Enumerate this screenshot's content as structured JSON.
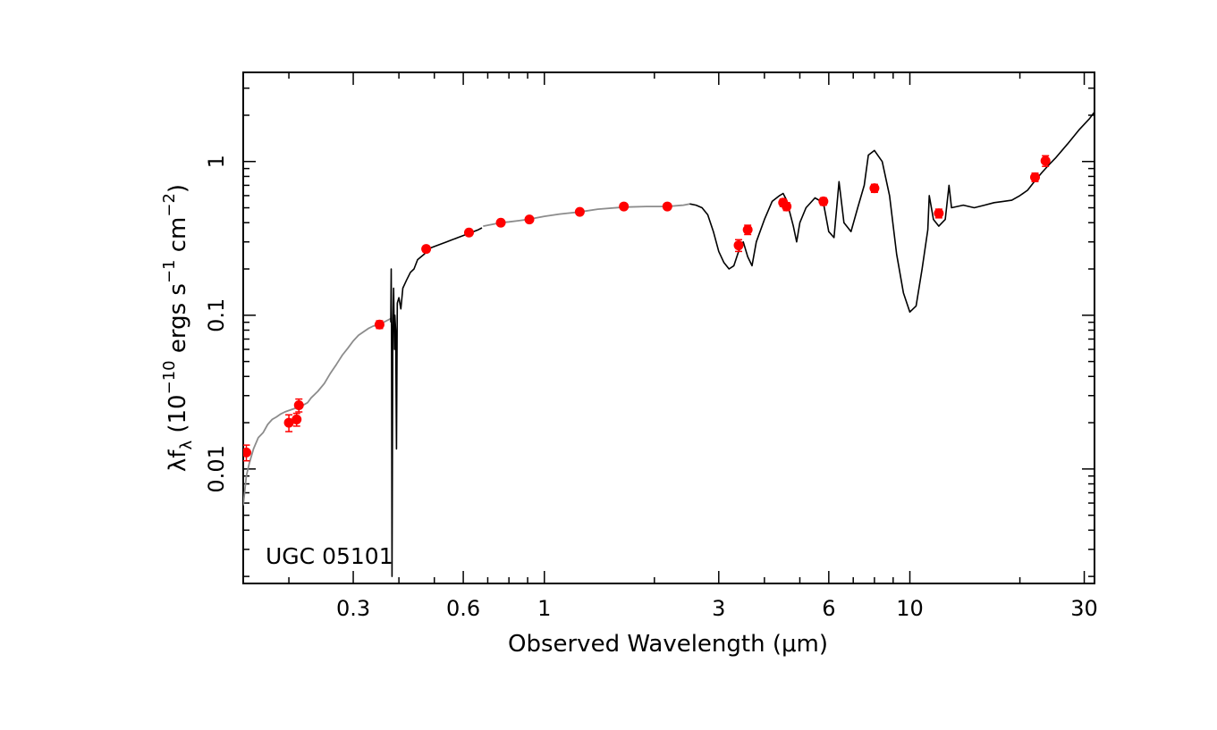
{
  "chart_data": {
    "type": "scatter",
    "title": "",
    "annotation": "UGC 05101",
    "xlabel": "Observed Wavelength (μm)",
    "ylabel_parts": {
      "base": "λf",
      "sub": "λ",
      "mid": " (10",
      "exp1": "−10",
      "mid2": " ergs s",
      "exp2": "−1",
      "mid3": " cm",
      "exp3": "−2",
      "end": ")"
    },
    "x_scale": "log",
    "y_scale": "log",
    "xlim": [
      0.15,
      32
    ],
    "ylim": [
      0.0018,
      3.8
    ],
    "x_ticks": [
      {
        "value": 0.3,
        "label": "0.3"
      },
      {
        "value": 0.6,
        "label": "0.6"
      },
      {
        "value": 1,
        "label": "1"
      },
      {
        "value": 3,
        "label": "3"
      },
      {
        "value": 6,
        "label": "6"
      },
      {
        "value": 10,
        "label": "10"
      },
      {
        "value": 30,
        "label": "30"
      }
    ],
    "y_ticks": [
      {
        "value": 0.01,
        "label": "0.01"
      },
      {
        "value": 0.1,
        "label": "0.1"
      },
      {
        "value": 1,
        "label": "1"
      }
    ],
    "grid": false,
    "legend": "none",
    "colors": {
      "photometry": "#ff0000",
      "model": "#8c8c8c",
      "spectrum": "#000000"
    },
    "series": [
      {
        "kind": "photometry",
        "points": [
          {
            "x": 0.153,
            "y": 0.0128,
            "err": 0.0015
          },
          {
            "x": 0.2,
            "y": 0.02,
            "err": 0.0025
          },
          {
            "x": 0.21,
            "y": 0.021,
            "err": 0.002
          },
          {
            "x": 0.213,
            "y": 0.026,
            "err": 0.0025
          },
          {
            "x": 0.354,
            "y": 0.087,
            "err": 0.005
          },
          {
            "x": 0.475,
            "y": 0.27,
            "err": 0.012
          },
          {
            "x": 0.622,
            "y": 0.345,
            "err": 0.015
          },
          {
            "x": 0.76,
            "y": 0.4,
            "err": 0.015
          },
          {
            "x": 0.91,
            "y": 0.42,
            "err": 0.015
          },
          {
            "x": 1.25,
            "y": 0.47,
            "err": 0.015
          },
          {
            "x": 1.65,
            "y": 0.51,
            "err": 0.015
          },
          {
            "x": 2.17,
            "y": 0.51,
            "err": 0.015
          },
          {
            "x": 3.4,
            "y": 0.285,
            "err": 0.025
          },
          {
            "x": 3.6,
            "y": 0.36,
            "err": 0.025
          },
          {
            "x": 4.5,
            "y": 0.54,
            "err": 0.03
          },
          {
            "x": 4.6,
            "y": 0.51,
            "err": 0.03
          },
          {
            "x": 5.8,
            "y": 0.55,
            "err": 0.03
          },
          {
            "x": 8.0,
            "y": 0.67,
            "err": 0.04
          },
          {
            "x": 12.0,
            "y": 0.46,
            "err": 0.03
          },
          {
            "x": 22.0,
            "y": 0.79,
            "err": 0.05
          },
          {
            "x": 23.5,
            "y": 1.01,
            "err": 0.08
          }
        ]
      },
      {
        "kind": "model",
        "points": [
          [
            0.15,
            0.0058
          ],
          [
            0.153,
            0.009
          ],
          [
            0.156,
            0.011
          ],
          [
            0.16,
            0.0135
          ],
          [
            0.165,
            0.016
          ],
          [
            0.17,
            0.0172
          ],
          [
            0.175,
            0.0195
          ],
          [
            0.18,
            0.021
          ],
          [
            0.185,
            0.0218
          ],
          [
            0.19,
            0.0228
          ],
          [
            0.195,
            0.0235
          ],
          [
            0.2,
            0.024
          ],
          [
            0.205,
            0.0245
          ],
          [
            0.21,
            0.025
          ],
          [
            0.215,
            0.0258
          ],
          [
            0.22,
            0.0262
          ],
          [
            0.225,
            0.027
          ],
          [
            0.23,
            0.029
          ],
          [
            0.24,
            0.032
          ],
          [
            0.25,
            0.036
          ],
          [
            0.26,
            0.042
          ],
          [
            0.27,
            0.048
          ],
          [
            0.28,
            0.055
          ],
          [
            0.29,
            0.061
          ],
          [
            0.3,
            0.068
          ],
          [
            0.31,
            0.074
          ],
          [
            0.32,
            0.078
          ],
          [
            0.33,
            0.082
          ],
          [
            0.34,
            0.085
          ],
          [
            0.35,
            0.087
          ],
          [
            0.36,
            0.089
          ],
          [
            0.37,
            0.092
          ],
          [
            0.38,
            0.095
          ]
        ]
      },
      {
        "kind": "model",
        "points": [
          [
            0.68,
            0.38
          ],
          [
            0.72,
            0.39
          ],
          [
            0.76,
            0.4
          ],
          [
            0.8,
            0.405
          ],
          [
            0.85,
            0.412
          ],
          [
            0.9,
            0.42
          ],
          [
            1.0,
            0.44
          ],
          [
            1.1,
            0.455
          ],
          [
            1.25,
            0.47
          ],
          [
            1.4,
            0.49
          ],
          [
            1.65,
            0.505
          ],
          [
            1.9,
            0.51
          ],
          [
            2.17,
            0.51
          ],
          [
            2.4,
            0.52
          ],
          [
            2.5,
            0.53
          ]
        ]
      },
      {
        "kind": "spectrum",
        "points": [
          [
            0.38,
            0.09
          ],
          [
            0.381,
            0.2
          ],
          [
            0.382,
            0.06
          ],
          [
            0.383,
            0.002
          ],
          [
            0.385,
            0.08
          ],
          [
            0.387,
            0.15
          ],
          [
            0.389,
            0.06
          ],
          [
            0.39,
            0.1
          ],
          [
            0.392,
            0.08
          ],
          [
            0.394,
            0.0135
          ],
          [
            0.396,
            0.12
          ],
          [
            0.4,
            0.13
          ],
          [
            0.405,
            0.11
          ],
          [
            0.41,
            0.15
          ],
          [
            0.42,
            0.17
          ],
          [
            0.43,
            0.19
          ],
          [
            0.44,
            0.2
          ],
          [
            0.45,
            0.23
          ],
          [
            0.46,
            0.24
          ],
          [
            0.47,
            0.25
          ],
          [
            0.48,
            0.27
          ],
          [
            0.5,
            0.28
          ],
          [
            0.52,
            0.29
          ],
          [
            0.54,
            0.3
          ],
          [
            0.56,
            0.31
          ],
          [
            0.58,
            0.32
          ],
          [
            0.6,
            0.33
          ],
          [
            0.62,
            0.34
          ],
          [
            0.64,
            0.35
          ],
          [
            0.66,
            0.36
          ],
          [
            0.675,
            0.37
          ]
        ]
      },
      {
        "kind": "spectrum",
        "points": [
          [
            2.5,
            0.53
          ],
          [
            2.6,
            0.52
          ],
          [
            2.7,
            0.5
          ],
          [
            2.8,
            0.45
          ],
          [
            2.9,
            0.35
          ],
          [
            3.0,
            0.26
          ],
          [
            3.1,
            0.22
          ],
          [
            3.2,
            0.2
          ],
          [
            3.3,
            0.21
          ],
          [
            3.4,
            0.26
          ],
          [
            3.5,
            0.3
          ],
          [
            3.6,
            0.24
          ],
          [
            3.7,
            0.21
          ],
          [
            3.8,
            0.3
          ],
          [
            4.0,
            0.42
          ],
          [
            4.2,
            0.55
          ],
          [
            4.4,
            0.6
          ],
          [
            4.5,
            0.62
          ],
          [
            4.6,
            0.56
          ],
          [
            4.8,
            0.38
          ],
          [
            4.9,
            0.3
          ],
          [
            5.0,
            0.4
          ],
          [
            5.2,
            0.5
          ],
          [
            5.5,
            0.58
          ],
          [
            5.8,
            0.54
          ],
          [
            6.0,
            0.35
          ],
          [
            6.2,
            0.32
          ],
          [
            6.4,
            0.74
          ],
          [
            6.6,
            0.4
          ],
          [
            6.9,
            0.35
          ],
          [
            7.2,
            0.5
          ],
          [
            7.5,
            0.7
          ],
          [
            7.7,
            1.1
          ],
          [
            8.0,
            1.18
          ],
          [
            8.4,
            1.0
          ],
          [
            8.8,
            0.6
          ],
          [
            9.2,
            0.25
          ],
          [
            9.6,
            0.14
          ],
          [
            10.0,
            0.105
          ],
          [
            10.4,
            0.115
          ],
          [
            10.8,
            0.2
          ],
          [
            11.2,
            0.36
          ],
          [
            11.3,
            0.6
          ],
          [
            11.6,
            0.42
          ],
          [
            12.0,
            0.38
          ],
          [
            12.5,
            0.42
          ],
          [
            12.8,
            0.7
          ],
          [
            13.0,
            0.5
          ],
          [
            14.0,
            0.52
          ],
          [
            15.0,
            0.5
          ],
          [
            16.0,
            0.52
          ],
          [
            17.0,
            0.54
          ],
          [
            18.0,
            0.55
          ],
          [
            19.0,
            0.56
          ],
          [
            20.0,
            0.6
          ],
          [
            21.0,
            0.65
          ],
          [
            22.0,
            0.75
          ],
          [
            23.0,
            0.85
          ],
          [
            24.0,
            0.95
          ],
          [
            25.0,
            1.05
          ],
          [
            27.0,
            1.3
          ],
          [
            29.0,
            1.6
          ],
          [
            31.0,
            1.9
          ],
          [
            32.0,
            2.1
          ]
        ]
      }
    ]
  }
}
